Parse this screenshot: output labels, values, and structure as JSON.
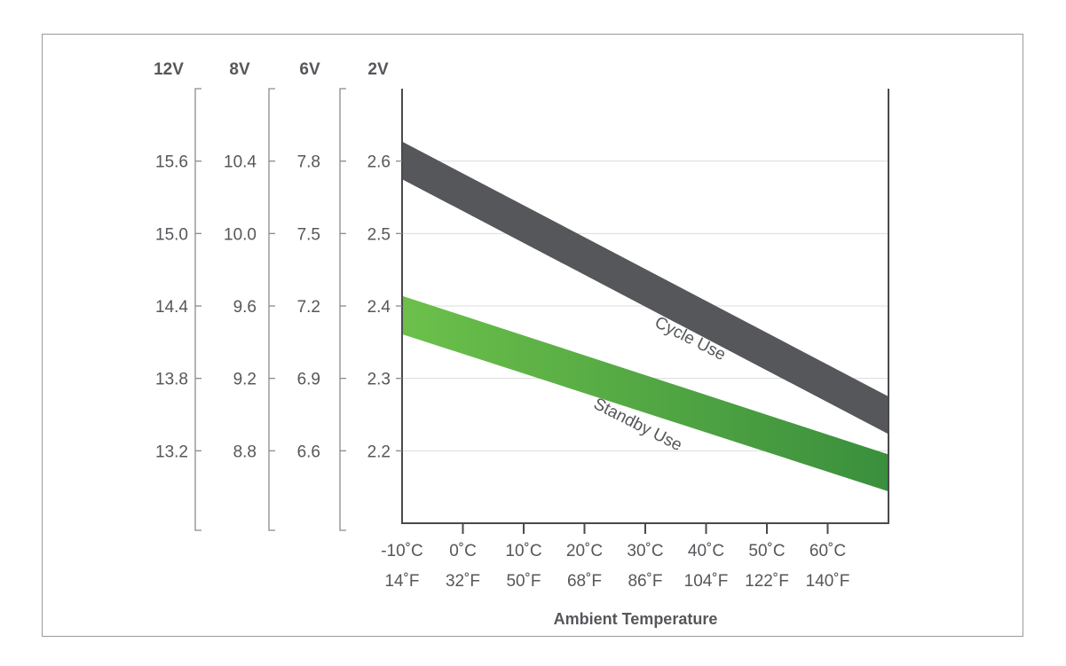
{
  "chart_data": {
    "type": "area",
    "xlabel": "Ambient Temperature",
    "x_ticks_c": [
      -10,
      0,
      10,
      20,
      30,
      40,
      50,
      60
    ],
    "x_tick_labels_c": [
      "-10˚C",
      "0˚C",
      "10˚C",
      "20˚C",
      "30˚C",
      "40˚C",
      "50˚C",
      "60˚C"
    ],
    "x_tick_labels_f": [
      "14˚F",
      "32˚F",
      "50˚F",
      "68˚F",
      "86˚F",
      "104˚F",
      "122˚F",
      "140˚F"
    ],
    "xlim": [
      -10,
      70
    ],
    "ylim": [
      2.1,
      2.7
    ],
    "grid": true,
    "y_axes": [
      {
        "header": "12V",
        "ticks": [
          "15.6",
          "15.0",
          "14.4",
          "13.8",
          "13.2"
        ]
      },
      {
        "header": "8V",
        "ticks": [
          "10.4",
          "10.0",
          "9.6",
          "9.2",
          "8.8"
        ]
      },
      {
        "header": "6V",
        "ticks": [
          "7.8",
          "7.5",
          "7.2",
          "6.9",
          "6.6"
        ]
      },
      {
        "header": "2V",
        "ticks": [
          "2.6",
          "2.5",
          "2.4",
          "2.3",
          "2.2"
        ]
      }
    ],
    "y_tick_values_2v": [
      2.6,
      2.5,
      2.4,
      2.3,
      2.2
    ],
    "series": [
      {
        "name": "Cycle Use",
        "x": [
          -10,
          70
        ],
        "upper": [
          2.627,
          2.275
        ],
        "lower": [
          2.575,
          2.223
        ],
        "color": "#55575a"
      },
      {
        "name": "Standby Use",
        "x": [
          -10,
          70
        ],
        "upper": [
          2.414,
          2.195
        ],
        "lower": [
          2.361,
          2.144
        ],
        "color_start": "#6cc04a",
        "color_end": "#3a8f3d"
      }
    ]
  }
}
